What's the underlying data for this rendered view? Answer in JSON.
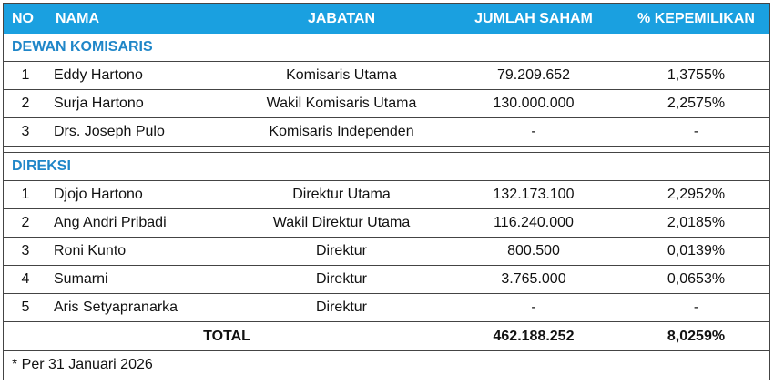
{
  "header": {
    "no": "NO",
    "nama": "NAMA",
    "jabatan": "JABATAN",
    "jumlah_saham": "JUMLAH SAHAM",
    "kepemilikan": "% KEPEMILIKAN"
  },
  "colors": {
    "header_bg": "#1aa0e0",
    "section_text": "#1f86c8"
  },
  "sections": [
    {
      "title": "DEWAN KOMISARIS",
      "rows": [
        {
          "no": "1",
          "nama": "Eddy Hartono",
          "jabatan": "Komisaris Utama",
          "jumlah": "79.209.652",
          "persen": "1,3755%"
        },
        {
          "no": "2",
          "nama": "Surja Hartono",
          "jabatan": "Wakil Komisaris Utama",
          "jumlah": "130.000.000",
          "persen": "2,2575%"
        },
        {
          "no": "3",
          "nama": "Drs. Joseph Pulo",
          "jabatan": "Komisaris Independen",
          "jumlah": "-",
          "persen": "-"
        }
      ]
    },
    {
      "title": "DIREKSI",
      "rows": [
        {
          "no": "1",
          "nama": "Djojo Hartono",
          "jabatan": "Direktur Utama",
          "jumlah": "132.173.100",
          "persen": "2,2952%"
        },
        {
          "no": "2",
          "nama": "Ang Andri Pribadi",
          "jabatan": "Wakil Direktur Utama",
          "jumlah": "116.240.000",
          "persen": "2,0185%"
        },
        {
          "no": "3",
          "nama": "Roni Kunto",
          "jabatan": "Direktur",
          "jumlah": "800.500",
          "persen": "0,0139%"
        },
        {
          "no": "4",
          "nama": "Sumarni",
          "jabatan": "Direktur",
          "jumlah": "3.765.000",
          "persen": "0,0653%"
        },
        {
          "no": "5",
          "nama": "Aris Setyapranarka",
          "jabatan": "Direktur",
          "jumlah": "-",
          "persen": "-"
        }
      ]
    }
  ],
  "total": {
    "label": "TOTAL",
    "jumlah": "462.188.252",
    "persen": "8,0259%"
  },
  "note": "* Per 31 Januari 2026"
}
